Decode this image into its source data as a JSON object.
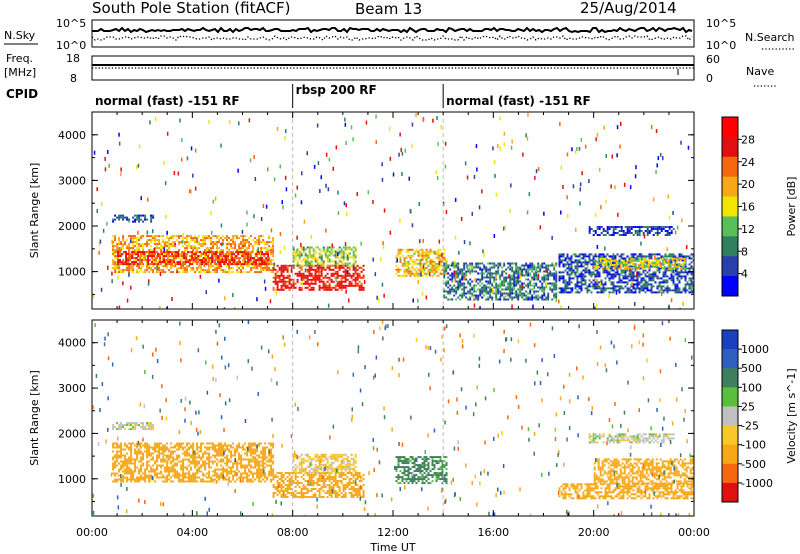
{
  "header": {
    "station": "South Pole Station (fitACF)",
    "beam": "Beam 13",
    "date": "25/Aug/2014"
  },
  "status_panels": {
    "left_labels": {
      "nsky": "N.Sky",
      "freq_line1": "Freq.",
      "freq_line2": "[MHz]",
      "cpid": "CPID"
    },
    "right_labels": {
      "nsearch": "N.Search",
      "nave": "Nave"
    },
    "noise_ticks": {
      "high": "10^5",
      "low": "10^0"
    },
    "freq_ticks": [
      "18",
      "8"
    ],
    "nave_ticks": [
      "60",
      "0"
    ],
    "cpid_modes": [
      {
        "label": "normal (fast) -151 RF",
        "start_hour": 0,
        "end_hour": 8.0
      },
      {
        "label": "rbsp 200 RF",
        "start_hour": 8.0,
        "end_hour": 14.0
      },
      {
        "label": "normal (fast) -151 RF",
        "start_hour": 14.0,
        "end_hour": 24.0
      }
    ]
  },
  "chart_data": [
    {
      "type": "heatmap",
      "title": "",
      "xlabel": "Time UT",
      "ylabel": "Slant Range [km]",
      "colorbar_label": "Power [dB]",
      "xlim": [
        0,
        24
      ],
      "ylim": [
        180,
        4500
      ],
      "x_ticks": [
        "00:00",
        "04:00",
        "08:00",
        "12:00",
        "16:00",
        "20:00",
        "00:00"
      ],
      "y_ticks": [
        1000,
        2000,
        3000,
        4000
      ],
      "colorbar_ticks": [
        4,
        8,
        12,
        16,
        20,
        24,
        28
      ],
      "colorbar_colors": [
        "#0000ff",
        "#2a3fa8",
        "#2f7f5f",
        "#5abf5a",
        "#f2e600",
        "#f7a818",
        "#f56810",
        "#e01010",
        "#ff0000"
      ],
      "regions": [
        {
          "t_start": 0.8,
          "t_end": 7.2,
          "r_min": 1000,
          "r_max": 1800,
          "level": 20
        },
        {
          "t_start": 1.0,
          "t_end": 7.0,
          "r_min": 1150,
          "r_max": 1450,
          "level": 26
        },
        {
          "t_start": 7.2,
          "t_end": 10.8,
          "r_min": 580,
          "r_max": 1150,
          "level": 28
        },
        {
          "t_start": 8.0,
          "t_end": 10.5,
          "r_min": 1150,
          "r_max": 1550,
          "level": 14
        },
        {
          "t_start": 12.1,
          "t_end": 14.1,
          "r_min": 900,
          "r_max": 1500,
          "level": 18
        },
        {
          "t_start": 0.8,
          "t_end": 2.4,
          "r_min": 2100,
          "r_max": 2250,
          "level": 6
        },
        {
          "t_start": 18.6,
          "t_end": 24,
          "r_min": 550,
          "r_max": 1400,
          "level": 6
        },
        {
          "t_start": 20.0,
          "t_end": 23.6,
          "r_min": 1050,
          "r_max": 1300,
          "level": 16
        },
        {
          "t_start": 19.8,
          "t_end": 23.2,
          "r_min": 1800,
          "r_max": 2000,
          "level": 5
        },
        {
          "t_start": 14.0,
          "t_end": 18.5,
          "r_min": 400,
          "r_max": 1200,
          "level": 8
        }
      ]
    },
    {
      "type": "heatmap",
      "title": "",
      "xlabel": "Time UT",
      "ylabel": "Slant Range [km]",
      "colorbar_label": "Velocity [m s^-1]",
      "xlim": [
        0,
        24
      ],
      "ylim": [
        180,
        4500
      ],
      "x_ticks": [
        "00:00",
        "04:00",
        "08:00",
        "12:00",
        "16:00",
        "20:00",
        "00:00"
      ],
      "y_ticks": [
        1000,
        2000,
        3000,
        4000
      ],
      "colorbar_ticks": [
        1000,
        500,
        100,
        25,
        -25,
        -100,
        -500,
        -1000
      ],
      "colorbar_colors": [
        "#1a3fbf",
        "#2f5fbf",
        "#3f7f5f",
        "#5abf3a",
        "#c0c0c0",
        "#f7c828",
        "#f7a818",
        "#f56810",
        "#e01010"
      ],
      "regions": [
        {
          "t_start": 0.8,
          "t_end": 7.2,
          "r_min": 950,
          "r_max": 1800,
          "level": -300
        },
        {
          "t_start": 7.2,
          "t_end": 10.8,
          "r_min": 580,
          "r_max": 1150,
          "level": -300
        },
        {
          "t_start": 8.0,
          "t_end": 10.5,
          "r_min": 1150,
          "r_max": 1550,
          "level": -60
        },
        {
          "t_start": 12.1,
          "t_end": 14.1,
          "r_min": 900,
          "r_max": 1500,
          "level": 200
        },
        {
          "t_start": 19.8,
          "t_end": 23.2,
          "r_min": 1800,
          "r_max": 2000,
          "level": 0
        },
        {
          "t_start": 0.8,
          "t_end": 2.4,
          "r_min": 2100,
          "r_max": 2250,
          "level": 0
        },
        {
          "t_start": 20.0,
          "t_end": 24,
          "r_min": 900,
          "r_max": 1450,
          "level": -300
        },
        {
          "t_start": 18.6,
          "t_end": 24,
          "r_min": 550,
          "r_max": 900,
          "level": -300
        }
      ]
    }
  ]
}
